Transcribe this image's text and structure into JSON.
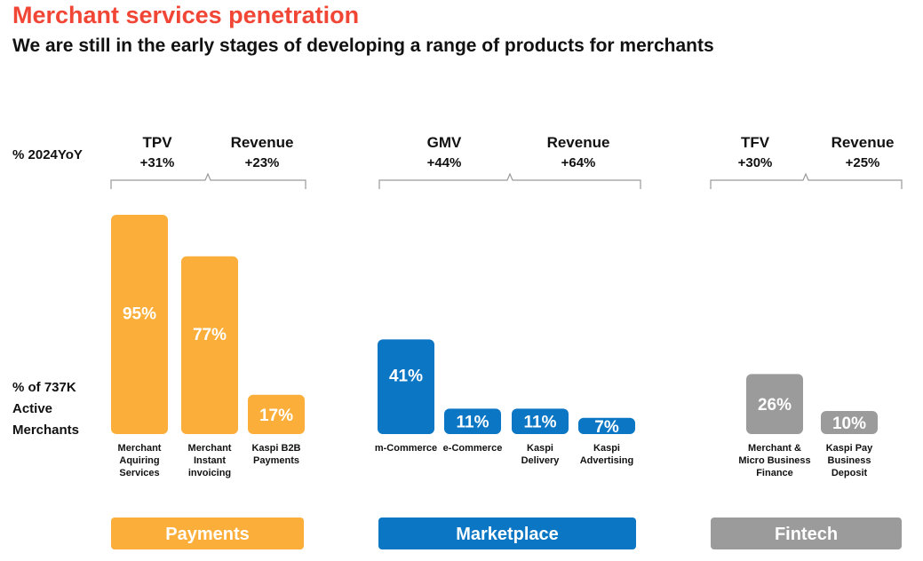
{
  "header": {
    "title": "Merchant services penetration",
    "subtitle": "We are still in the early stages of developing a range of products for merchants"
  },
  "row_labels": {
    "yoy": "% 2024YoY",
    "merchants": "% of 737K\nActive\nMerchants"
  },
  "colors": {
    "title": "#f14635",
    "payments": "#fbaf3a",
    "marketplace": "#0a76c4",
    "fintech": "#9b9b9b",
    "bracket": "#9a9a9a"
  },
  "chart_data": {
    "type": "bar",
    "ylim": [
      0,
      100
    ],
    "groups": [
      {
        "name": "Payments",
        "color": "#fbaf3a",
        "metrics": [
          {
            "name": "TPV",
            "value": "+31%"
          },
          {
            "name": "Revenue",
            "value": "+23%"
          }
        ],
        "bars": [
          {
            "label": "Merchant\nAquiring\nServices",
            "value": 95
          },
          {
            "label": "Merchant\nInstant\ninvoicing",
            "value": 77
          },
          {
            "label": "Kaspi B2B\nPayments",
            "value": 17
          }
        ]
      },
      {
        "name": "Marketplace",
        "color": "#0a76c4",
        "metrics": [
          {
            "name": "GMV",
            "value": "+44%"
          },
          {
            "name": "Revenue",
            "value": "+64%"
          }
        ],
        "bars": [
          {
            "label": "m-Commerce",
            "value": 41
          },
          {
            "label": "e-Commerce",
            "value": 11
          },
          {
            "label": "Kaspi\nDelivery",
            "value": 11
          },
          {
            "label": "Kaspi\nAdvertising",
            "value": 7
          }
        ]
      },
      {
        "name": "Fintech",
        "color": "#9b9b9b",
        "metrics": [
          {
            "name": "TFV",
            "value": "+30%"
          },
          {
            "name": "Revenue",
            "value": "+25%"
          }
        ],
        "bars": [
          {
            "label": "Merchant &\nMicro Business\nFinance",
            "value": 26
          },
          {
            "label": "Kaspi Pay\nBusiness\nDeposit",
            "value": 10
          }
        ]
      }
    ]
  }
}
